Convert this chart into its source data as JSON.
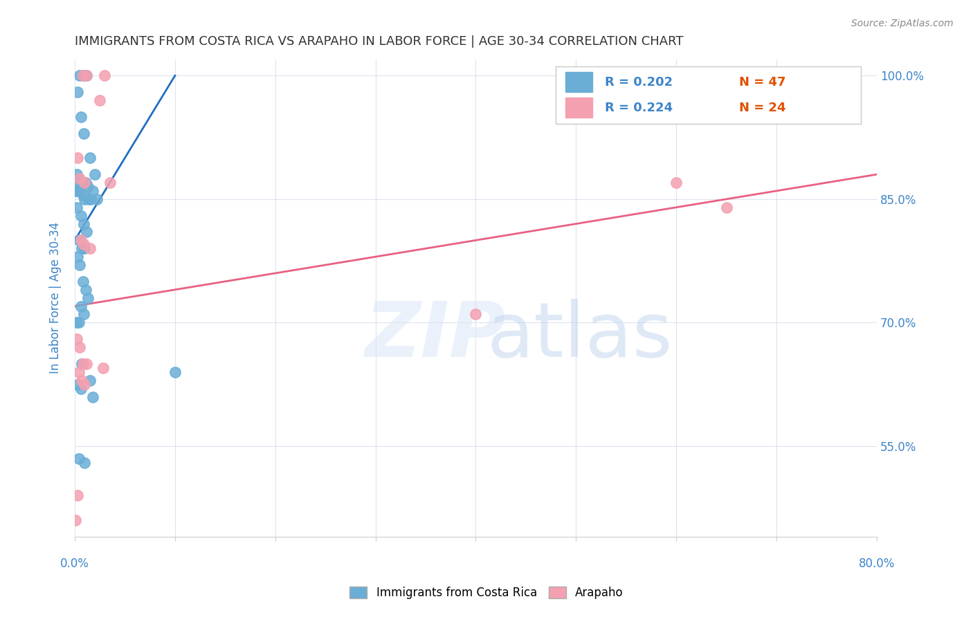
{
  "title": "IMMIGRANTS FROM COSTA RICA VS ARAPAHO IN LABOR FORCE | AGE 30-34 CORRELATION CHART",
  "source": "Source: ZipAtlas.com",
  "ylabel": "In Labor Force | Age 30-34",
  "legend_blue_r": "0.202",
  "legend_blue_n": "47",
  "legend_pink_r": "0.224",
  "legend_pink_n": "24",
  "legend_blue_label": "Immigrants from Costa Rica",
  "legend_pink_label": "Arapaho",
  "xmin": 0.0,
  "xmax": 80.0,
  "ymin": 44.0,
  "ymax": 102.0,
  "yticks": [
    55.0,
    70.0,
    85.0,
    100.0
  ],
  "xticks": [
    0.0,
    10.0,
    20.0,
    30.0,
    40.0,
    50.0,
    60.0,
    70.0,
    80.0
  ],
  "blue_scatter_x": [
    0.5,
    0.8,
    1.0,
    1.2,
    0.3,
    0.6,
    0.9,
    1.5,
    2.0,
    0.2,
    0.4,
    0.7,
    1.1,
    1.3,
    1.8,
    0.1,
    0.3,
    0.5,
    0.8,
    1.0,
    1.4,
    1.6,
    2.2,
    0.2,
    0.6,
    0.9,
    1.2,
    0.4,
    0.7,
    1.0,
    0.3,
    0.5,
    0.8,
    1.1,
    1.3,
    0.6,
    0.9,
    0.2,
    0.4,
    0.7,
    10.0,
    1.5,
    0.3,
    0.6,
    1.8,
    0.4,
    1.0
  ],
  "blue_scatter_y": [
    100.0,
    100.0,
    100.0,
    100.0,
    98.0,
    95.0,
    93.0,
    90.0,
    88.0,
    88.0,
    87.0,
    87.0,
    87.0,
    86.5,
    86.0,
    86.0,
    86.0,
    86.0,
    85.5,
    85.0,
    85.0,
    85.0,
    85.0,
    84.0,
    83.0,
    82.0,
    81.0,
    80.0,
    79.0,
    79.0,
    78.0,
    77.0,
    75.0,
    74.0,
    73.0,
    72.0,
    71.0,
    70.0,
    70.0,
    65.0,
    64.0,
    63.0,
    62.5,
    62.0,
    61.0,
    53.5,
    53.0
  ],
  "pink_scatter_x": [
    0.8,
    1.2,
    3.0,
    2.5,
    0.3,
    0.5,
    1.0,
    3.5,
    0.6,
    0.9,
    1.5,
    40.0,
    0.2,
    0.5,
    0.8,
    1.2,
    2.8,
    0.4,
    0.7,
    1.0,
    60.0,
    65.0,
    0.3,
    0.1
  ],
  "pink_scatter_y": [
    100.0,
    100.0,
    100.0,
    97.0,
    90.0,
    87.5,
    87.0,
    87.0,
    80.0,
    79.5,
    79.0,
    71.0,
    68.0,
    67.0,
    65.0,
    65.0,
    64.5,
    64.0,
    63.0,
    62.5,
    87.0,
    84.0,
    49.0,
    46.0
  ],
  "blue_line_x": [
    0.0,
    10.0
  ],
  "blue_line_y": [
    80.0,
    100.0
  ],
  "pink_line_x": [
    0.0,
    80.0
  ],
  "pink_line_y": [
    72.0,
    88.0
  ],
  "blue_color": "#6aaed6",
  "pink_color": "#f4a0b0",
  "blue_line_color": "#1f6fbf",
  "pink_line_color": "#e86080",
  "title_color": "#333333",
  "axis_label_color": "#3d85c8"
}
